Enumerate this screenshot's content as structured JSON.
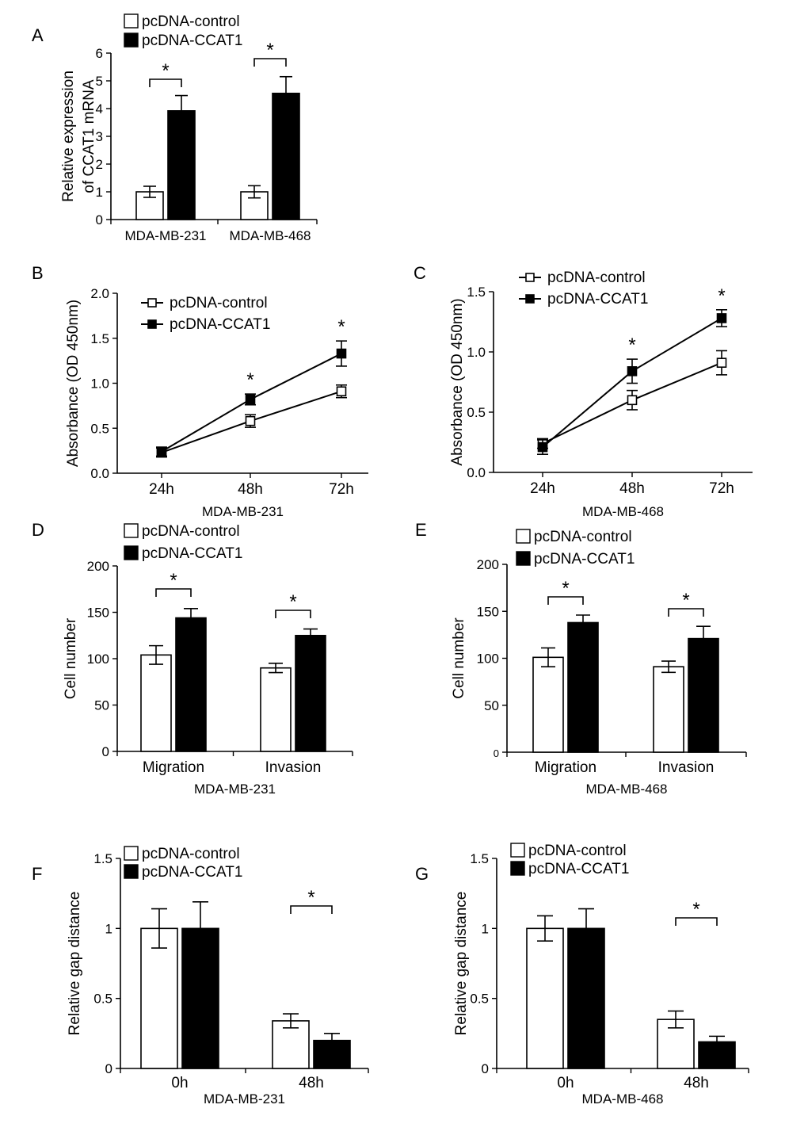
{
  "colors": {
    "control": "#ffffff",
    "ccat1": "#000000",
    "stroke": "#000000"
  },
  "chart_data": [
    {
      "panel": "A",
      "type": "bar",
      "categories": [
        "MDA-MB-231",
        "MDA-MB-468"
      ],
      "ylabel": [
        "Relative expression",
        "of CCAT1 mRNA"
      ],
      "ylim": [
        0,
        6
      ],
      "yticks": [
        0,
        1,
        2,
        3,
        4,
        5,
        6
      ],
      "ytick_labels": [
        "0",
        "1",
        "2",
        "3",
        "4",
        "5",
        "6"
      ],
      "series": [
        {
          "name": "pcDNA-control",
          "values": [
            1.0,
            1.0
          ],
          "errors": [
            0.2,
            0.22
          ]
        },
        {
          "name": "pcDNA-CCAT1",
          "values": [
            3.92,
            4.55
          ],
          "errors": [
            0.55,
            0.6
          ]
        }
      ],
      "significance": [
        "*",
        "*"
      ],
      "legend": [
        "pcDNA-control",
        "pcDNA-CCAT1"
      ]
    },
    {
      "panel": "B",
      "type": "line",
      "categories": [
        "24h",
        "48h",
        "72h"
      ],
      "title": "MDA-MB-231",
      "ylabel": "Absorbance (OD 450nm)",
      "ylim": [
        0,
        2.0
      ],
      "yticks": [
        0,
        0.5,
        1.0,
        1.5,
        2.0
      ],
      "ytick_labels": [
        "0.0",
        "0.5",
        "1.0",
        "1.5",
        "2.0"
      ],
      "series": [
        {
          "name": "pcDNA-control",
          "values": [
            0.23,
            0.58,
            0.91
          ],
          "errors": [
            0.05,
            0.07,
            0.07
          ]
        },
        {
          "name": "pcDNA-CCAT1",
          "values": [
            0.24,
            0.82,
            1.33
          ],
          "errors": [
            0.05,
            0.06,
            0.14
          ]
        }
      ],
      "significance": [
        "",
        "*",
        "*"
      ],
      "legend": [
        "pcDNA-control",
        "pcDNA-CCAT1"
      ]
    },
    {
      "panel": "C",
      "type": "line",
      "categories": [
        "24h",
        "48h",
        "72h"
      ],
      "title": "MDA-MB-468",
      "ylabel": "Absorbance (OD 450nm)",
      "ylim": [
        0,
        1.5
      ],
      "yticks": [
        0,
        0.5,
        1.0,
        1.5
      ],
      "ytick_labels": [
        "0.0",
        "0.5",
        "1.0",
        "1.5"
      ],
      "series": [
        {
          "name": "pcDNA-control",
          "values": [
            0.24,
            0.6,
            0.91
          ],
          "errors": [
            0.04,
            0.08,
            0.1
          ]
        },
        {
          "name": "pcDNA-CCAT1",
          "values": [
            0.21,
            0.84,
            1.28
          ],
          "errors": [
            0.06,
            0.1,
            0.07
          ]
        }
      ],
      "significance": [
        "",
        "*",
        "*"
      ],
      "legend": [
        "pcDNA-control",
        "pcDNA-CCAT1"
      ]
    },
    {
      "panel": "D",
      "type": "bar",
      "categories": [
        "Migration",
        "Invasion"
      ],
      "title": "MDA-MB-231",
      "ylabel": "Cell number",
      "ylim": [
        0,
        200
      ],
      "yticks": [
        0,
        50,
        100,
        150,
        200
      ],
      "ytick_labels": [
        "0",
        "50",
        "100",
        "150",
        "200"
      ],
      "series": [
        {
          "name": "pcDNA-control",
          "values": [
            104,
            90
          ],
          "errors": [
            10,
            5
          ]
        },
        {
          "name": "pcDNA-CCAT1",
          "values": [
            144,
            125
          ],
          "errors": [
            10,
            7
          ]
        }
      ],
      "significance": [
        "*",
        "*"
      ],
      "legend": [
        "pcDNA-control",
        "pcDNA-CCAT1"
      ]
    },
    {
      "panel": "E",
      "type": "bar",
      "categories": [
        "Migration",
        "Invasion"
      ],
      "title": "MDA-MB-468",
      "ylabel": "Cell number",
      "ylim": [
        0,
        200
      ],
      "yticks": [
        0,
        50,
        100,
        150,
        200
      ],
      "ytick_labels": [
        "0",
        "50",
        "100",
        "150",
        "200"
      ],
      "series": [
        {
          "name": "pcDNA-control",
          "values": [
            101,
            91
          ],
          "errors": [
            10,
            6
          ]
        },
        {
          "name": "pcDNA-CCAT1",
          "values": [
            138,
            121
          ],
          "errors": [
            8,
            13
          ]
        }
      ],
      "significance": [
        "*",
        "*"
      ],
      "legend": [
        "pcDNA-control",
        "pcDNA-CCAT1"
      ]
    },
    {
      "panel": "F",
      "type": "bar",
      "categories": [
        "0h",
        "48h"
      ],
      "title": "MDA-MB-231",
      "ylabel": "Relative gap distance",
      "ylim": [
        0,
        1.5
      ],
      "yticks": [
        0,
        0.5,
        1,
        1.5
      ],
      "ytick_labels": [
        "0",
        "0.5",
        "1",
        "1.5"
      ],
      "series": [
        {
          "name": "pcDNA-control",
          "values": [
            1.0,
            0.34
          ],
          "errors": [
            0.14,
            0.05
          ]
        },
        {
          "name": "pcDNA-CCAT1",
          "values": [
            1.0,
            0.2
          ],
          "errors": [
            0.19,
            0.05
          ]
        }
      ],
      "significance": [
        "",
        "*"
      ],
      "legend": [
        "pcDNA-control",
        "pcDNA-CCAT1"
      ]
    },
    {
      "panel": "G",
      "type": "bar",
      "categories": [
        "0h",
        "48h"
      ],
      "title": "MDA-MB-468",
      "ylabel": "Relative gap distance",
      "ylim": [
        0,
        1.5
      ],
      "yticks": [
        0,
        0.5,
        1,
        1.5
      ],
      "ytick_labels": [
        "0",
        "0.5",
        "1",
        "1.5"
      ],
      "series": [
        {
          "name": "pcDNA-control",
          "values": [
            1.0,
            0.35
          ],
          "errors": [
            0.09,
            0.06
          ]
        },
        {
          "name": "pcDNA-CCAT1",
          "values": [
            1.0,
            0.19
          ],
          "errors": [
            0.14,
            0.04
          ]
        }
      ],
      "significance": [
        "",
        "*"
      ],
      "legend": [
        "pcDNA-control",
        "pcDNA-CCAT1"
      ]
    }
  ]
}
